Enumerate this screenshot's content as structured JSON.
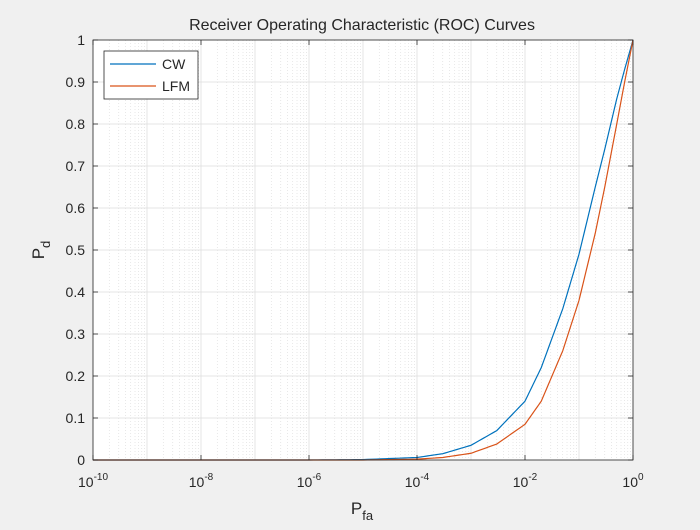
{
  "chart_data": {
    "type": "line",
    "title": "Receiver Operating Characteristic (ROC) Curves",
    "xlabel": {
      "main": "P",
      "sub": "fa"
    },
    "ylabel": {
      "main": "P",
      "sub": "d"
    },
    "xscale": "log",
    "xlim": [
      1e-10,
      1
    ],
    "ylim": [
      0,
      1
    ],
    "grid": "on (major and minor)",
    "legend_location": "top-left",
    "x_ticks": [
      {
        "base": "10",
        "exp": "-10"
      },
      {
        "base": "10",
        "exp": "-8"
      },
      {
        "base": "10",
        "exp": "-6"
      },
      {
        "base": "10",
        "exp": "-4"
      },
      {
        "base": "10",
        "exp": "-2"
      },
      {
        "base": "10",
        "exp": "0"
      }
    ],
    "y_ticks": [
      "0",
      "0.1",
      "0.2",
      "0.3",
      "0.4",
      "0.5",
      "0.6",
      "0.7",
      "0.8",
      "0.9",
      "1"
    ],
    "series": [
      {
        "name": "CW",
        "color": "#0072BD",
        "x": [
          1e-10,
          1e-08,
          1e-06,
          1e-05,
          0.0001,
          0.0003,
          0.001,
          0.003,
          0.01,
          0.02,
          0.05,
          0.1,
          0.2,
          0.3,
          0.5,
          0.7,
          1
        ],
        "y": [
          0,
          0,
          0,
          0.001,
          0.006,
          0.015,
          0.035,
          0.07,
          0.14,
          0.22,
          0.36,
          0.49,
          0.65,
          0.74,
          0.86,
          0.93,
          1
        ]
      },
      {
        "name": "LFM",
        "color": "#D95319",
        "x": [
          1e-10,
          1e-08,
          1e-06,
          1e-05,
          0.0001,
          0.0003,
          0.001,
          0.003,
          0.01,
          0.02,
          0.05,
          0.1,
          0.2,
          0.3,
          0.5,
          0.7,
          1
        ],
        "y": [
          0,
          0,
          0,
          0,
          0.002,
          0.006,
          0.016,
          0.038,
          0.085,
          0.14,
          0.26,
          0.38,
          0.54,
          0.65,
          0.8,
          0.9,
          1
        ]
      }
    ]
  }
}
